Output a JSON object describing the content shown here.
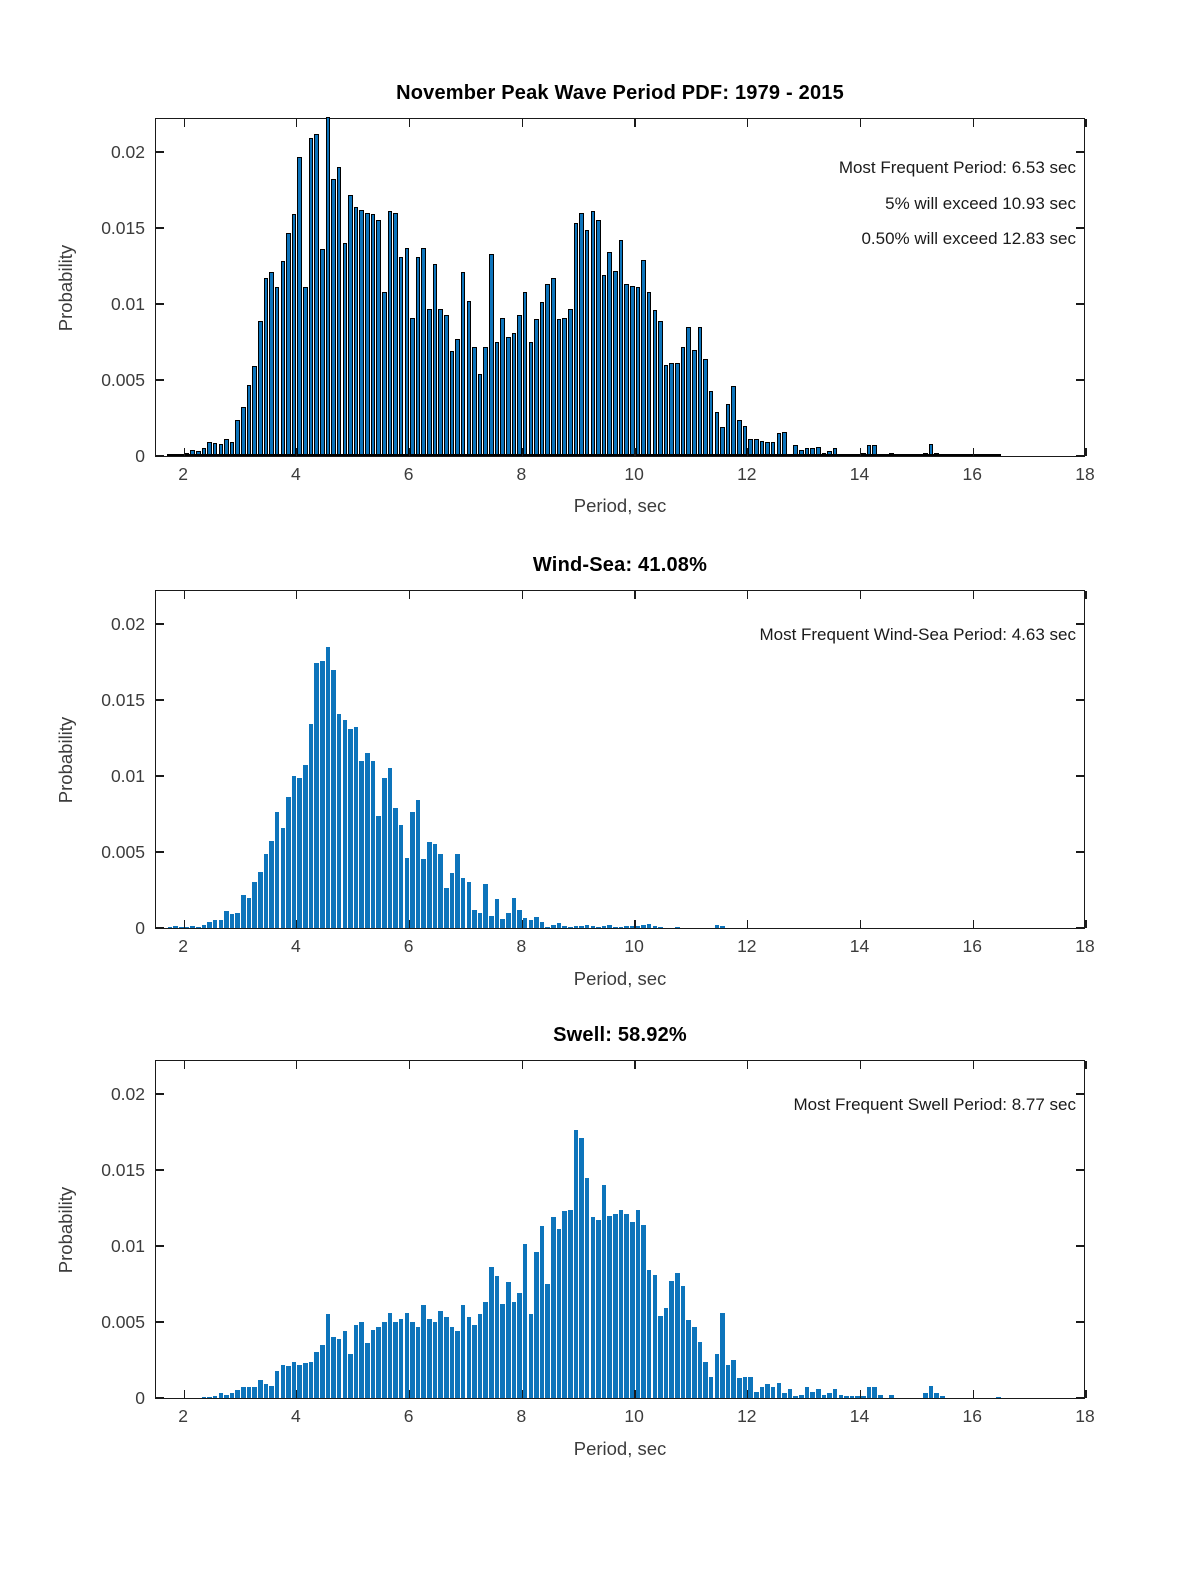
{
  "figure": {
    "background": "#ffffff"
  },
  "style": {
    "bar_fill": "#0d74bb",
    "bar_edge": "#000000",
    "axis_color": "#1a1a1a",
    "tick_label_color": "#3c3c3c",
    "title_color": "#000000"
  },
  "axes": {
    "xlabel": "Period, sec",
    "ylabel": "Probability",
    "x_ticks": [
      2,
      4,
      6,
      8,
      10,
      12,
      14,
      16,
      18
    ],
    "y_ticks": [
      "0",
      "0.005",
      "0.01",
      "0.015",
      "0.02"
    ],
    "y_tick_values": [
      0,
      0.005,
      0.01,
      0.015,
      0.02
    ],
    "xlim": [
      1.5,
      18
    ],
    "ylim": [
      0,
      0.0223
    ],
    "grid": false
  },
  "chart_data": [
    {
      "type": "bar",
      "title": "November Peak Wave Period PDF: 1979 - 2015",
      "annotations": [
        "Most Frequent Period: 6.53 sec",
        "5% will exceed 10.93 sec",
        "0.50% will exceed 12.83 sec"
      ],
      "xlabel": "Period, sec",
      "ylabel": "Probability",
      "bin_start": 1.75,
      "bin_step": 0.1,
      "bar_edges": true,
      "values": [
        0.0001,
        0.00015,
        0.0001,
        0.0002,
        0.0004,
        0.0003,
        0.0005,
        0.0009,
        0.00085,
        0.0008,
        0.0011,
        0.0009,
        0.0024,
        0.0032,
        0.0047,
        0.0059,
        0.0089,
        0.0117,
        0.0121,
        0.0111,
        0.0128,
        0.0147,
        0.0159,
        0.0197,
        0.0111,
        0.0209,
        0.0212,
        0.0136,
        0.0223,
        0.0182,
        0.019,
        0.014,
        0.0172,
        0.0164,
        0.0162,
        0.016,
        0.0159,
        0.0155,
        0.0108,
        0.0161,
        0.016,
        0.0131,
        0.0137,
        0.0091,
        0.0131,
        0.0137,
        0.0097,
        0.0126,
        0.0097,
        0.0093,
        0.0069,
        0.0077,
        0.0121,
        0.0102,
        0.0072,
        0.0054,
        0.0072,
        0.0133,
        0.0075,
        0.0091,
        0.0078,
        0.0081,
        0.0093,
        0.0108,
        0.0075,
        0.009,
        0.0101,
        0.0113,
        0.0117,
        0.009,
        0.0091,
        0.0097,
        0.0153,
        0.016,
        0.0149,
        0.0161,
        0.0155,
        0.0119,
        0.0134,
        0.0122,
        0.0142,
        0.0113,
        0.0112,
        0.0111,
        0.0129,
        0.0108,
        0.0096,
        0.0089,
        0.006,
        0.0061,
        0.0061,
        0.0072,
        0.0085,
        0.007,
        0.0085,
        0.0064,
        0.0043,
        0.0029,
        0.0019,
        0.0034,
        0.0046,
        0.0024,
        0.002,
        0.0011,
        0.0011,
        0.001,
        0.0009,
        0.0009,
        0.0015,
        0.0016,
        0.0001,
        0.0007,
        0.0004,
        0.0005,
        0.0005,
        0.0006,
        0.0002,
        0.0003,
        0.0005,
        0.0001,
        0.0001,
        0.0001,
        0,
        0.0002,
        0.0007,
        0.0007,
        0.0001,
        0,
        0.0002,
        0,
        0,
        0,
        0,
        0,
        0.0002,
        0.0008,
        0.0002,
        0,
        0,
        0,
        0,
        0,
        0,
        0,
        0,
        0,
        0,
        5e-05
      ]
    },
    {
      "type": "bar",
      "title": "Wind-Sea: 41.08%",
      "annotations": [
        "Most Frequent Wind-Sea Period: 4.63 sec"
      ],
      "xlabel": "Period, sec",
      "ylabel": "Probability",
      "bin_start": 1.75,
      "bin_step": 0.1,
      "bar_edges": false,
      "values": [
        5e-05,
        0.0001,
        5e-05,
        5e-05,
        0.0001,
        8e-05,
        0.0002,
        0.0004,
        0.00055,
        0.0005,
        0.0011,
        0.0009,
        0.001,
        0.0022,
        0.002,
        0.003,
        0.0037,
        0.0049,
        0.0057,
        0.0076,
        0.0066,
        0.0086,
        0.01,
        0.0099,
        0.0107,
        0.0134,
        0.01745,
        0.01755,
        0.0185,
        0.017,
        0.0141,
        0.0137,
        0.0131,
        0.0132,
        0.011,
        0.0115,
        0.011,
        0.00735,
        0.0099,
        0.0105,
        0.0079,
        0.00675,
        0.0046,
        0.0076,
        0.0084,
        0.00455,
        0.00565,
        0.0055,
        0.0049,
        0.0026,
        0.0036,
        0.0049,
        0.0033,
        0.003,
        0.0012,
        0.001,
        0.0029,
        0.0008,
        0.0019,
        0.0006,
        0.001,
        0.002,
        0.0012,
        0.00066,
        0.0005,
        0.00072,
        0.00037,
        7e-05,
        0.00022,
        0.0003,
        0.00015,
        7e-05,
        0.00011,
        0.00015,
        0.0002,
        0.0001,
        5e-05,
        0.0001,
        0.0002,
        5e-05,
        5e-05,
        0.0001,
        0.00015,
        0.0001,
        0.0002,
        0.00025,
        0.0001,
        5e-05,
        0,
        0,
        5e-05,
        0,
        0,
        0,
        0,
        0,
        0,
        0.0002,
        0.00015,
        0,
        0,
        0,
        0,
        0,
        0,
        0,
        0,
        0,
        0,
        0,
        0,
        0,
        0,
        0,
        0,
        0,
        0,
        0,
        0,
        0,
        0,
        0,
        0,
        0,
        0,
        0,
        0,
        0,
        0,
        0,
        0,
        0,
        0,
        0,
        0,
        0,
        0,
        0,
        0,
        0,
        0,
        0,
        0,
        0,
        0,
        0,
        0,
        0
      ]
    },
    {
      "type": "bar",
      "title": "Swell: 58.92%",
      "annotations": [
        "Most Frequent Swell Period: 8.77 sec"
      ],
      "xlabel": "Period, sec",
      "ylabel": "Probability",
      "bin_start": 1.75,
      "bin_step": 0.1,
      "bar_edges": false,
      "values": [
        0,
        0,
        0,
        0,
        0,
        0,
        5e-05,
        5e-05,
        0.0001,
        0.0003,
        0.0002,
        0.0003,
        0.0005,
        0.0007,
        0.0007,
        0.0007,
        0.0012,
        0.0009,
        0.0008,
        0.0018,
        0.0022,
        0.0021,
        0.0024,
        0.0022,
        0.0023,
        0.0024,
        0.003,
        0.0035,
        0.0055,
        0.004,
        0.0039,
        0.0044,
        0.0029,
        0.0048,
        0.005,
        0.0036,
        0.0045,
        0.0047,
        0.005,
        0.0056,
        0.005,
        0.0052,
        0.0056,
        0.005,
        0.0047,
        0.0061,
        0.0052,
        0.005,
        0.0057,
        0.0053,
        0.0047,
        0.0044,
        0.0061,
        0.0053,
        0.0048,
        0.0055,
        0.0063,
        0.0086,
        0.008,
        0.0062,
        0.0076,
        0.0063,
        0.0069,
        0.0101,
        0.0055,
        0.0096,
        0.0113,
        0.0075,
        0.0119,
        0.0111,
        0.0123,
        0.0124,
        0.0176,
        0.0171,
        0.0145,
        0.0119,
        0.0117,
        0.014,
        0.012,
        0.0121,
        0.0124,
        0.0121,
        0.0116,
        0.0124,
        0.0114,
        0.0084,
        0.0081,
        0.0054,
        0.0059,
        0.0077,
        0.0082,
        0.0074,
        0.0051,
        0.0047,
        0.0037,
        0.0024,
        0.0014,
        0.0029,
        0.0056,
        0.0022,
        0.0025,
        0.0013,
        0.0014,
        0.0014,
        0.0004,
        0.0007,
        0.0009,
        0.0007,
        0.001,
        0.0003,
        0.0006,
        0.0001,
        0.0002,
        0.0007,
        0.0004,
        0.0006,
        0.0002,
        0.0003,
        0.0006,
        0.0002,
        0.0001,
        0.0001,
        0.0001,
        0.00015,
        0.0007,
        0.0007,
        0.0002,
        0,
        0.0002,
        0,
        0,
        0,
        0,
        0,
        0.0003,
        0.0008,
        0.0003,
        0.0001,
        0,
        0,
        0,
        0,
        0,
        0,
        0,
        0,
        0,
        5e-05
      ]
    }
  ]
}
